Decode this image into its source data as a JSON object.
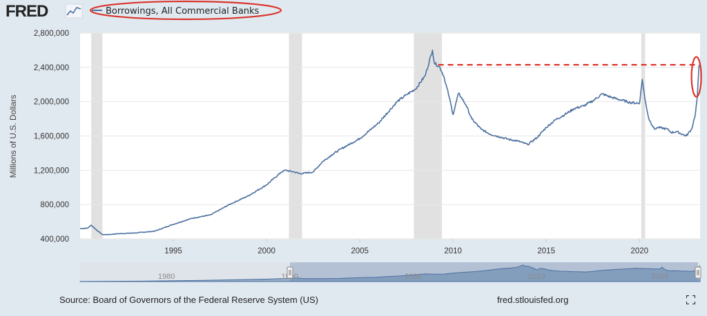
{
  "header": {
    "logo_text": "FRED",
    "legend_label": "Borrowings, All Commercial Banks"
  },
  "footer": {
    "source": "Source: Board of Governors of the Federal Reserve System (US)",
    "site": "fred.stlouisfed.org"
  },
  "navigator": {
    "tick_labels": [
      "1980",
      "1990",
      "2000",
      "2010",
      "2020"
    ]
  },
  "colors": {
    "series": "#4a6f9f",
    "recession": "#e1e1e1",
    "annotation": "#d9342b",
    "background": "#e1e9f0"
  },
  "icons": {
    "fullscreen": "fullscreen-icon",
    "logo_chart": "fred-graph-icon"
  },
  "chart_data": {
    "type": "line",
    "ylabel": "Millions of U.S. Dollars",
    "ylim": [
      400000,
      2800000
    ],
    "yticks": [
      400000,
      800000,
      1200000,
      1600000,
      2000000,
      2400000,
      2800000
    ],
    "ytick_labels": [
      "400,000",
      "800,000",
      "1,200,000",
      "1,600,000",
      "2,000,000",
      "2,400,000",
      "2,800,000"
    ],
    "xlim": [
      1990.0,
      2023.25
    ],
    "xticks": [
      1995,
      2000,
      2005,
      2010,
      2015,
      2020
    ],
    "xtick_labels": [
      "1995",
      "2000",
      "2005",
      "2010",
      "2015",
      "2020"
    ],
    "grid": true,
    "legend_position": "top-left",
    "recessions": [
      [
        1990.6,
        1991.2
      ],
      [
        2001.2,
        2001.9
      ],
      [
        2007.9,
        2009.4
      ],
      [
        2020.1,
        2020.3
      ]
    ],
    "series": [
      {
        "name": "Borrowings, All Commercial Banks",
        "x": [
          1990.0,
          1990.4,
          1990.6,
          1990.9,
          1991.2,
          1991.5,
          1992.0,
          1993.0,
          1994.0,
          1995.0,
          1996.0,
          1997.0,
          1998.0,
          1999.0,
          2000.0,
          2000.8,
          2001.0,
          2001.5,
          2001.8,
          2002.5,
          2003.0,
          2003.5,
          2004.0,
          2005.0,
          2006.0,
          2007.0,
          2007.5,
          2008.0,
          2008.5,
          2008.9,
          2009.0,
          2009.3,
          2009.5,
          2009.8,
          2010.0,
          2010.3,
          2010.7,
          2011.0,
          2011.5,
          2012.0,
          2012.5,
          2013.0,
          2013.5,
          2014.0,
          2014.5,
          2015.0,
          2015.5,
          2016.0,
          2016.5,
          2017.0,
          2017.5,
          2018.0,
          2018.5,
          2019.0,
          2019.5,
          2020.0,
          2020.15,
          2020.3,
          2020.5,
          2020.8,
          2021.0,
          2021.5,
          2021.7,
          2022.0,
          2022.5,
          2022.8,
          2023.0,
          2023.1,
          2023.2
        ],
        "values": [
          520000,
          525000,
          560000,
          500000,
          450000,
          450000,
          460000,
          470000,
          490000,
          570000,
          640000,
          680000,
          800000,
          900000,
          1030000,
          1180000,
          1200000,
          1180000,
          1160000,
          1180000,
          1300000,
          1380000,
          1450000,
          1570000,
          1750000,
          2000000,
          2080000,
          2150000,
          2300000,
          2600000,
          2450000,
          2400000,
          2300000,
          2050000,
          1850000,
          2100000,
          1960000,
          1800000,
          1680000,
          1620000,
          1590000,
          1560000,
          1540000,
          1500000,
          1580000,
          1700000,
          1790000,
          1850000,
          1920000,
          1950000,
          2010000,
          2090000,
          2050000,
          2020000,
          1990000,
          1980000,
          2260000,
          2020000,
          1800000,
          1680000,
          1700000,
          1680000,
          1640000,
          1650000,
          1600000,
          1680000,
          1860000,
          2050000,
          2430000
        ]
      }
    ],
    "annotations": {
      "reference_line_value": 2430000
    }
  }
}
